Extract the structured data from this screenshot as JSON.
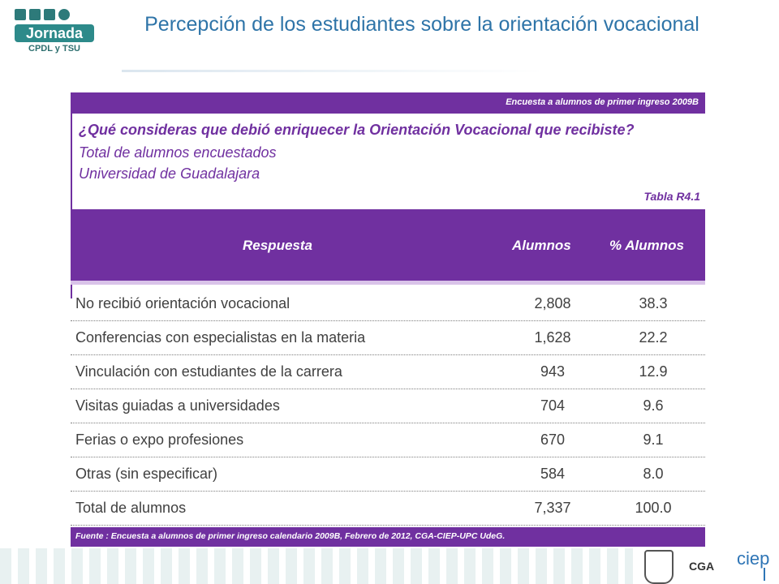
{
  "logo": {
    "name": "Jornada",
    "subtitle": "CPDL y TSU"
  },
  "title": "Percepción de los estudiantes sobre la orientación vocacional",
  "table": {
    "banner": "Encuesta a alumnos de primer ingreso 2009B",
    "question": "¿Qué consideras que debió enriquecer la Orientación Vocacional que recibiste?",
    "subtitle1": "Total de alumnos encuestados",
    "subtitle2": "Universidad de Guadalajara",
    "table_id": "Tabla R4.1",
    "headers": [
      "Respuesta",
      "Alumnos",
      "% Alumnos"
    ],
    "rows": [
      [
        "No recibió orientación vocacional",
        "2,808",
        "38.3"
      ],
      [
        "Conferencias con especialistas en la materia",
        "1,628",
        "22.2"
      ],
      [
        "Vinculación con estudiantes de la carrera",
        "943",
        "12.9"
      ],
      [
        "Visitas guiadas a universidades",
        "704",
        "9.6"
      ],
      [
        "Ferias o expo profesiones",
        "670",
        "9.1"
      ],
      [
        "Otras (sin especificar)",
        "584",
        "8.0"
      ],
      [
        "Total de alumnos",
        "7,337",
        "100.0"
      ]
    ],
    "footer": "Fuente : Encuesta a alumnos de primer ingreso calendario 2009B,  Febrero de 2012, CGA-CIEP-UPC UdeG."
  },
  "bottom": {
    "cga": "CGA",
    "ciep": "ciep"
  }
}
